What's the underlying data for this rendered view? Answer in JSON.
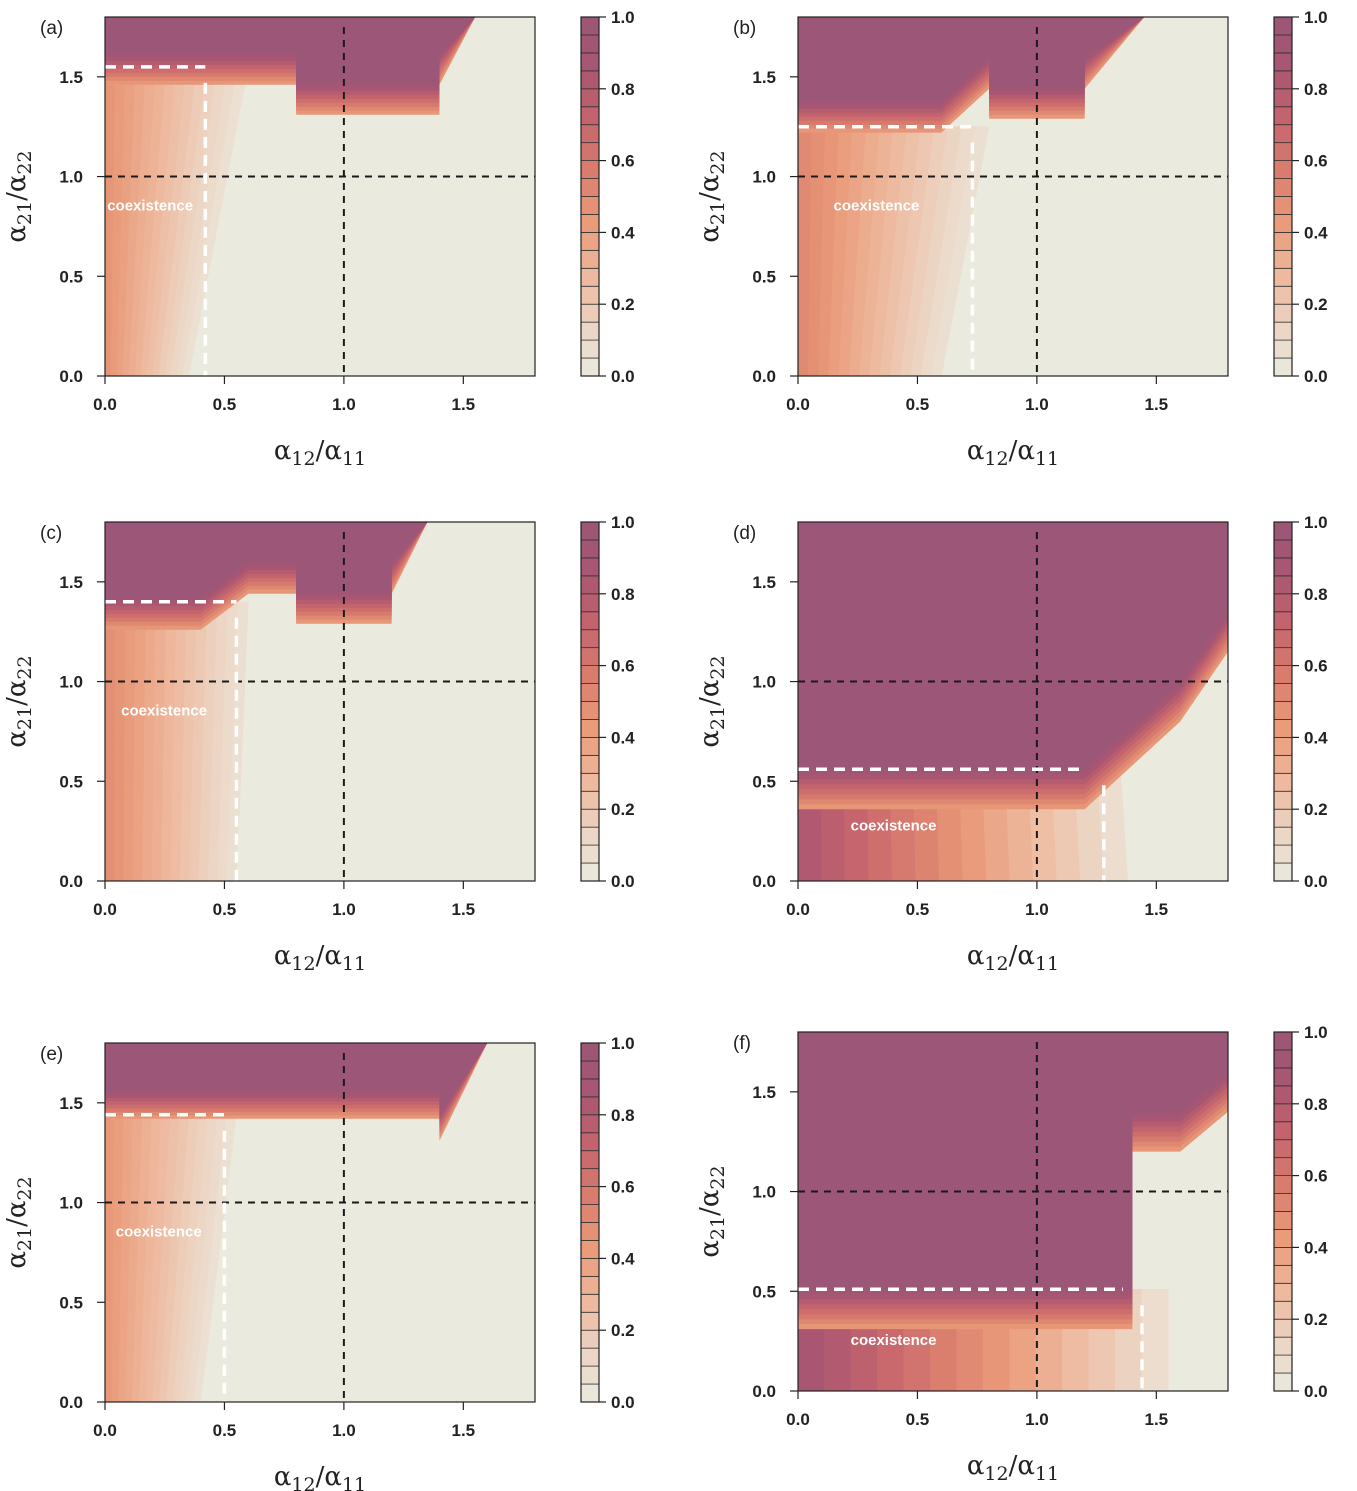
{
  "chart_data": [
    {
      "panel": "(a)",
      "type": "heatmap",
      "xlabel": "α12/α11",
      "ylabel": "α21/α22",
      "xlim": [
        0,
        1.8
      ],
      "ylim": [
        0,
        1.8
      ],
      "xticks": [
        "0.0",
        "0.5",
        "1.0",
        "1.5"
      ],
      "yticks": [
        "0.0",
        "0.5",
        "1.0",
        "1.5"
      ],
      "colorbar": {
        "range": [
          0,
          1
        ],
        "ticks": [
          "0.0",
          "0.2",
          "0.4",
          "0.6",
          "0.8",
          "1.0"
        ],
        "levels": 20
      },
      "reference_lines": {
        "x": 1.0,
        "y": 1.0
      },
      "coexistence_boundary": {
        "x": 0.42,
        "y": 1.55
      },
      "annotation": "coexistence",
      "regions": {
        "top_front": [
          [
            0,
            1.62
          ],
          [
            0.8,
            1.62
          ],
          [
            0.8,
            1.47
          ],
          [
            1.4,
            1.47
          ],
          [
            1.4,
            1.62
          ],
          [
            1.55,
            1.8
          ],
          [
            0,
            1.8
          ]
        ],
        "coex_bottom_x": 0.35,
        "coex_top_x": 0.6,
        "shoulder_x": 0.58,
        "shoulder_y": 1.55,
        "band": 0.16,
        "peak": 0.42
      }
    },
    {
      "panel": "(b)",
      "type": "heatmap",
      "xlabel": "α12/α11",
      "ylabel": "α21/α22",
      "xlim": [
        0,
        1.8
      ],
      "ylim": [
        0,
        1.8
      ],
      "xticks": [
        "0.0",
        "0.5",
        "1.0",
        "1.5"
      ],
      "yticks": [
        "0.0",
        "0.5",
        "1.0",
        "1.5"
      ],
      "colorbar": {
        "range": [
          0,
          1
        ],
        "ticks": [
          "0.0",
          "0.2",
          "0.4",
          "0.6",
          "0.8",
          "1.0"
        ],
        "levels": 20
      },
      "reference_lines": {
        "x": 1.0,
        "y": 1.0
      },
      "coexistence_boundary": {
        "x": 0.73,
        "y": 1.25
      },
      "annotation": "coexistence",
      "regions": {
        "top_front": [
          [
            0,
            1.38
          ],
          [
            0.6,
            1.38
          ],
          [
            0.8,
            1.6
          ],
          [
            0.8,
            1.6
          ],
          [
            0.8,
            1.45
          ],
          [
            1.2,
            1.45
          ],
          [
            1.2,
            1.6
          ],
          [
            1.45,
            1.8
          ],
          [
            0,
            1.8
          ]
        ],
        "coex_bottom_x": 0.6,
        "coex_top_x": 0.8,
        "shoulder_x": 0.8,
        "shoulder_y": 1.25,
        "band": 0.16,
        "peak": 0.48
      }
    },
    {
      "panel": "(c)",
      "type": "heatmap",
      "xlabel": "α12/α11",
      "ylabel": "α21/α22",
      "xlim": [
        0,
        1.8
      ],
      "ylim": [
        0,
        1.8
      ],
      "xticks": [
        "0.0",
        "0.5",
        "1.0",
        "1.5"
      ],
      "yticks": [
        "0.0",
        "0.5",
        "1.0",
        "1.5"
      ],
      "colorbar": {
        "range": [
          0,
          1
        ],
        "ticks": [
          "0.0",
          "0.2",
          "0.4",
          "0.6",
          "0.8",
          "1.0"
        ],
        "levels": 20
      },
      "reference_lines": {
        "x": 1.0,
        "y": 1.0
      },
      "coexistence_boundary": {
        "x": 0.55,
        "y": 1.4
      },
      "annotation": "coexistence",
      "regions": {
        "top_front": [
          [
            0,
            1.42
          ],
          [
            0.4,
            1.42
          ],
          [
            0.6,
            1.6
          ],
          [
            0.8,
            1.6
          ],
          [
            0.8,
            1.45
          ],
          [
            1.2,
            1.45
          ],
          [
            1.2,
            1.6
          ],
          [
            1.35,
            1.8
          ],
          [
            0,
            1.8
          ]
        ],
        "coex_bottom_x": 0.55,
        "coex_top_x": 0.6,
        "shoulder_x": 0.6,
        "shoulder_y": 1.4,
        "band": 0.16,
        "peak": 0.45
      }
    },
    {
      "panel": "(d)",
      "type": "heatmap",
      "xlabel": "α12/α11",
      "ylabel": "α21/α22",
      "xlim": [
        0,
        1.8
      ],
      "ylim": [
        0,
        1.8
      ],
      "xticks": [
        "0.0",
        "0.5",
        "1.0",
        "1.5"
      ],
      "yticks": [
        "0.0",
        "0.5",
        "1.0",
        "1.5"
      ],
      "colorbar": {
        "range": [
          0,
          1
        ],
        "ticks": [
          "0.0",
          "0.2",
          "0.4",
          "0.6",
          "0.8",
          "1.0"
        ],
        "levels": 20
      },
      "reference_lines": {
        "x": 1.0,
        "y": 1.0
      },
      "coexistence_boundary": {
        "x": 1.28,
        "y": 0.56
      },
      "annotation": "coexistence",
      "regions": {
        "top_front": [
          [
            0,
            0.56
          ],
          [
            1.2,
            0.56
          ],
          [
            1.6,
            1.0
          ],
          [
            1.8,
            1.35
          ],
          [
            1.8,
            1.8
          ],
          [
            0,
            1.8
          ]
        ],
        "coex_bottom_x": 1.38,
        "coex_top_x": 1.35,
        "shoulder_x": 1.35,
        "shoulder_y": 0.56,
        "band": 0.2,
        "peak": 0.8
      }
    },
    {
      "panel": "(e)",
      "type": "heatmap",
      "xlabel": "α12/α11",
      "ylabel": "α21/α22",
      "xlim": [
        0,
        1.8
      ],
      "ylim": [
        0,
        1.8
      ],
      "xticks": [
        "0.0",
        "0.5",
        "1.0",
        "1.5"
      ],
      "yticks": [
        "0.0",
        "0.5",
        "1.0",
        "1.5"
      ],
      "colorbar": {
        "range": [
          0,
          1
        ],
        "ticks": [
          "0.0",
          "0.2",
          "0.4",
          "0.6",
          "0.8",
          "1.0"
        ],
        "levels": 20
      },
      "reference_lines": {
        "x": 1.0,
        "y": 1.0
      },
      "coexistence_boundary": {
        "x": 0.5,
        "y": 1.44
      },
      "annotation": "coexistence",
      "regions": {
        "top_front": [
          [
            0,
            1.56
          ],
          [
            1.4,
            1.56
          ],
          [
            1.4,
            1.45
          ],
          [
            1.4,
            1.45
          ],
          [
            1.6,
            1.8
          ],
          [
            0,
            1.8
          ]
        ],
        "coex_bottom_x": 0.4,
        "coex_top_x": 0.55,
        "shoulder_x": 0.55,
        "shoulder_y": 1.44,
        "band": 0.14,
        "peak": 0.4
      }
    },
    {
      "panel": "(f)",
      "type": "heatmap",
      "xlabel": "α12/α11",
      "ylabel": "α21/α22",
      "xlim": [
        0,
        1.8
      ],
      "ylim": [
        0,
        1.8
      ],
      "xticks": [
        "0.0",
        "0.5",
        "1.0",
        "1.5"
      ],
      "yticks": [
        "0.0",
        "0.5",
        "1.0",
        "1.5"
      ],
      "colorbar": {
        "range": [
          0,
          1
        ],
        "ticks": [
          "0.0",
          "0.2",
          "0.4",
          "0.6",
          "0.8",
          "1.0"
        ],
        "levels": 20
      },
      "reference_lines": {
        "x": 1.0,
        "y": 1.0
      },
      "coexistence_boundary": {
        "x": 1.44,
        "y": 0.51
      },
      "annotation": "coexistence",
      "regions": {
        "top_front": [
          [
            0,
            0.51
          ],
          [
            1.4,
            0.51
          ],
          [
            1.4,
            1.4
          ],
          [
            1.6,
            1.4
          ],
          [
            1.8,
            1.6
          ],
          [
            1.8,
            1.8
          ],
          [
            0,
            1.8
          ]
        ],
        "coex_bottom_x": 1.55,
        "coex_top_x": 1.55,
        "shoulder_x": 1.55,
        "shoulder_y": 0.51,
        "band": 0.2,
        "peak": 0.85
      }
    }
  ],
  "colors": {
    "background": "#ebeadf",
    "ramp": [
      "#ebeadf",
      "#ecd3c1",
      "#eeb79c",
      "#e99a79",
      "#d97d6e",
      "#c5646d",
      "#a95672",
      "#9c5677"
    ],
    "guide_line": "#1a1a1a",
    "boundary_line": "#ffffff"
  }
}
